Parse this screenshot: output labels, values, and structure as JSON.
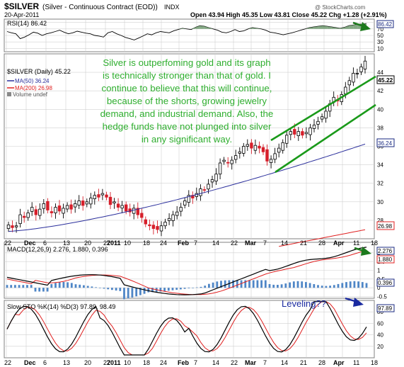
{
  "header": {
    "symbol": "$SILVER",
    "description": "(Silver - Continuous Contract (EOD))",
    "exchange": "INDX",
    "date": "20-Apr-2011",
    "ohlc": "Open 43.94  High 45.35  Low 43.81  Close 45.22  Chg +1.28 (+2.91%)",
    "up_arrow": "▲",
    "watermark": "@ StockCharts.com"
  },
  "annotations": {
    "commentary": [
      "Silver is outperfoming gold and its graph",
      "is technically stronger than that of gold. I",
      "continue to believe that this will continue,",
      "because of the shorts, growing jewelry",
      "demand, and industrial demand. Also, the",
      "hedge funds have not plunged into silver",
      "in any significant way."
    ],
    "leveling": "Leveling??"
  },
  "colors": {
    "grid": "#d0d0d0",
    "panel_border": "#808080",
    "up_candle": "#000000",
    "down_candle": "#d61f2a",
    "ma50": "#2b2f9c",
    "ma200": "#e02020",
    "rsi": "#000000",
    "rsi_fill": "#6f9a6f",
    "channel": "#1a9a1a",
    "arrow": "#1d7a1d",
    "commentary": "#2fae2f",
    "leveling": "#1a2aa0",
    "macd": "#000000",
    "macd_signal": "#e02020",
    "histogram": "#4f86c6",
    "sto_k": "#000000",
    "sto_d": "#e02020",
    "badge": "#1a2a80"
  },
  "chart_data": [
    {
      "type": "line",
      "name": "rsi-panel",
      "title": "RSI(14) 86.42",
      "y_ticks": [
        90,
        70,
        50,
        30,
        10
      ],
      "ylim": [
        0,
        100
      ],
      "last_value": "86.42",
      "values": [
        62,
        58,
        55,
        40,
        45,
        52,
        60,
        57,
        50,
        55,
        58,
        62,
        66,
        60,
        55,
        58,
        63,
        60,
        57,
        55,
        50,
        48,
        45,
        58,
        62,
        55,
        50,
        44,
        40,
        36,
        42,
        48,
        55,
        52,
        58,
        62,
        60,
        58,
        64,
        68,
        72,
        70,
        68,
        75,
        80,
        78,
        74,
        70,
        66,
        60,
        58,
        62,
        68,
        62,
        64,
        70,
        74,
        72,
        70,
        66,
        60,
        58,
        55,
        52,
        55,
        58,
        62,
        66,
        70,
        74,
        76,
        78,
        80,
        78,
        76,
        74,
        72,
        75,
        80,
        82,
        84,
        85,
        86.42
      ]
    },
    {
      "type": "candlestick",
      "name": "price-panel",
      "title": "$SILVER (Daily) 45.22",
      "legend": [
        {
          "label": "MA(50) 36.24"
        },
        {
          "label": "MA(200) 26.98"
        },
        {
          "label": "Volume undef"
        }
      ],
      "y_ticks": [
        28,
        30,
        32,
        34,
        36,
        38,
        40,
        42,
        44
      ],
      "ylim": [
        26,
        46
      ],
      "x_ticks": [
        "22",
        "Dec",
        "6",
        "13",
        "20",
        "27",
        "2011",
        "10",
        "18",
        "24",
        "Feb",
        "7",
        "14",
        "22",
        "Mar",
        "7",
        "14",
        "21",
        "28",
        "Apr",
        "11",
        "18"
      ],
      "closes": [
        27.5,
        27.2,
        27.4,
        28.6,
        28.3,
        28.8,
        29.4,
        28.6,
        29.2,
        29.8,
        29.1,
        28.8,
        29.4,
        29.0,
        29.3,
        29.6,
        29.2,
        29.8,
        30.1,
        29.6,
        30.0,
        30.4,
        30.7,
        30.5,
        30.9,
        30.5,
        29.7,
        30.0,
        29.4,
        29.6,
        29.0,
        28.9,
        29.3,
        28.6,
        28.3,
        27.6,
        27.4,
        27.1,
        27.0,
        27.4,
        27.8,
        28.2,
        28.6,
        28.9,
        29.4,
        30.1,
        30.7,
        30.4,
        30.9,
        31.4,
        31.3,
        31.9,
        32.4,
        33.0,
        34.2,
        34.5,
        34.2,
        34.5,
        35.0,
        35.4,
        36.0,
        36.2,
        35.8,
        36.1,
        35.8,
        35.4,
        34.4,
        34.6,
        35.2,
        35.8,
        36.4,
        37.2,
        37.6,
        37.3,
        37.6,
        37.2,
        37.5,
        38.0,
        38.3,
        38.7,
        39.2,
        39.8,
        40.6,
        41.3,
        40.9,
        41.6,
        42.4,
        43.1,
        43.9,
        43.9,
        44.6,
        45.22
      ],
      "ma50_range": [
        26.8,
        36.24
      ],
      "ma200_range": [
        19.5,
        26.98
      ],
      "last_close": "45.22",
      "ma50_last": "36.24",
      "ma200_last": "26.98"
    },
    {
      "type": "line",
      "name": "macd-panel",
      "title": "MACD(12,26,9) 2.276, 1.880, 0.396",
      "y_ticks": [
        2.0,
        1.5,
        1.0,
        0.5,
        0.0,
        -0.5
      ],
      "ylim": [
        -0.6,
        2.6
      ],
      "last_values": [
        "2.276",
        "1.880",
        "0.396"
      ]
    },
    {
      "type": "line",
      "name": "stochastic-panel",
      "title": "Slow STO %K(14) %D(3) 97.89, 98.49",
      "y_ticks": [
        80,
        60,
        40,
        20
      ],
      "ylim": [
        0,
        100
      ],
      "last_values": [
        "97.89",
        "98.49"
      ]
    }
  ]
}
